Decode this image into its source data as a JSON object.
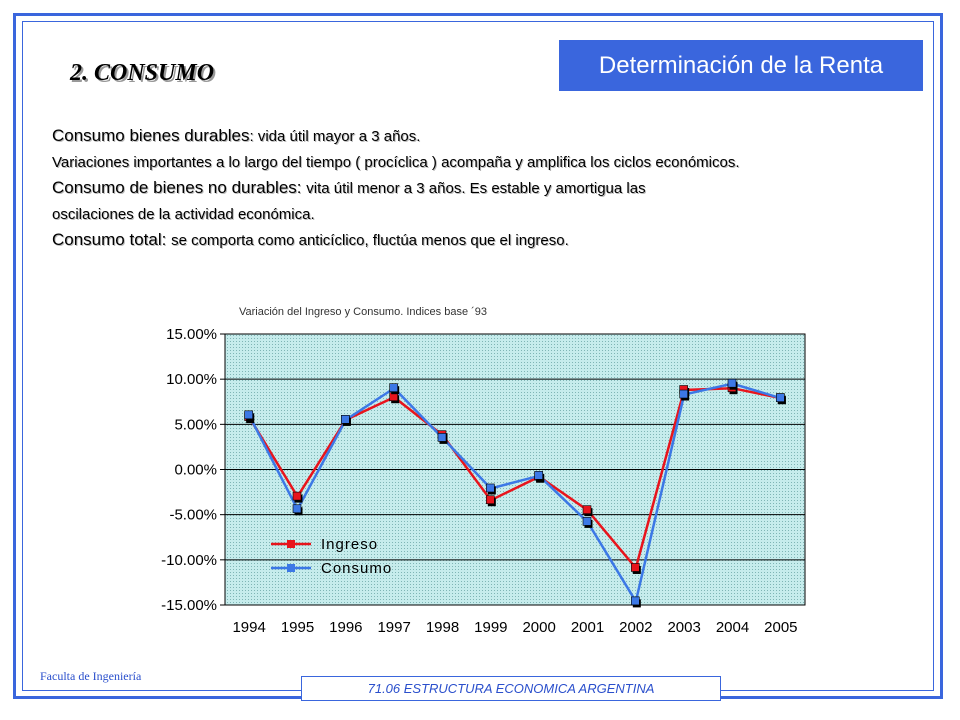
{
  "header": {
    "title": "Determinación de la Renta",
    "section": "2. CONSUMO"
  },
  "content": {
    "line1_label": "Consumo bienes durables",
    "line1_text": ": vida útil mayor a 3 años.",
    "line2_text": "Variaciones importantes a lo largo del tiempo ( procíclica ) acompaña y amplifica los ciclos económicos.",
    "line3_label": "Consumo de bienes no durables: ",
    "line3_text": "vita útil menor a 3 años. Es estable y amortigua las",
    "line4_text": "oscilaciones de la actividad económica.",
    "line5_label": "Consumo total: ",
    "line5_text": "se comporta como anticíclico, fluctúa menos que el ingreso."
  },
  "footer": {
    "left": "Faculta de Ingeniería",
    "course": "71.06 ESTRUCTURA ECONOMICA ARGENTINA"
  },
  "colors": {
    "accent": "#3a66dd",
    "ingreso": "#e8141c",
    "consumo": "#3c78e6",
    "plot_bg": "#c6ecec"
  },
  "chart_data": {
    "type": "line",
    "title": "Variación del Ingreso y Consumo. Indices base ´93",
    "categories": [
      "1994",
      "1995",
      "1996",
      "1997",
      "1998",
      "1999",
      "2000",
      "2001",
      "2002",
      "2003",
      "2004",
      "2005"
    ],
    "series": [
      {
        "name": "Ingreso",
        "values": [
          5.8,
          -3.0,
          5.5,
          8.0,
          3.8,
          -3.4,
          -0.8,
          -4.5,
          -10.9,
          8.8,
          9.0,
          7.9
        ]
      },
      {
        "name": "Consumo",
        "values": [
          6.0,
          -4.4,
          5.5,
          9.0,
          3.5,
          -2.1,
          -0.7,
          -5.8,
          -14.6,
          8.3,
          9.5,
          7.9
        ]
      }
    ],
    "yticks": [
      "15.00%",
      "10.00%",
      "5.00%",
      "0.00%",
      "-5.00%",
      "-10.00%",
      "-15.00%"
    ],
    "ylim": [
      -15,
      15
    ],
    "grid": true,
    "legend_position": "bottom-left"
  }
}
